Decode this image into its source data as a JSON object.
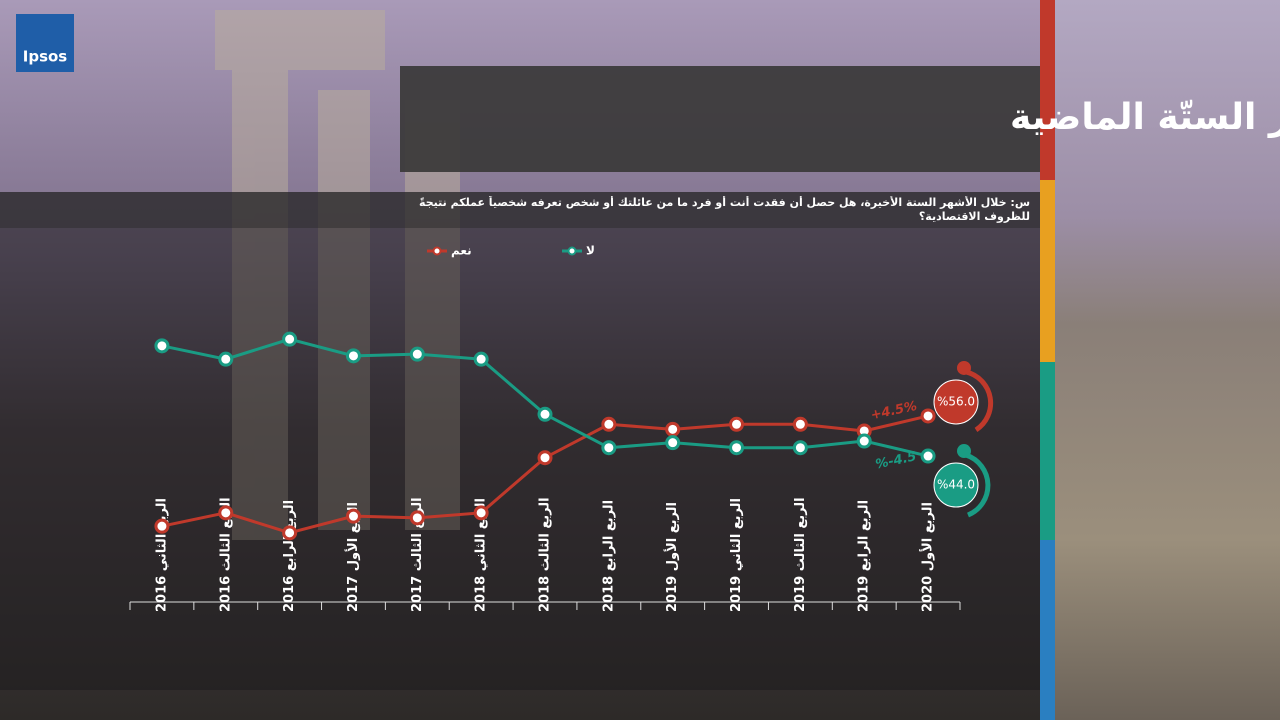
{
  "logo": "Ipsos",
  "chart_data": {
    "type": "line",
    "title": "فقدان العمل في الأشهر الستّة الماضية",
    "subtitle": "س: خلال الأشهر الستة الأخيرة، هل حصل أن فقدت أنت أو فرد ما من عائلتك أو شخص تعرفه شخصياً عملكم نتيجةً للظروف الاقتصادية؟",
    "categories": [
      "الربع الثاني 2016",
      "الربع الثالث 2016",
      "الربع الرابع 2016",
      "الربع الأول 2017",
      "الربع الثالث 2017",
      "الربع الثاني 2018",
      "الربع الثالث 2018",
      "الربع الرابع 2018",
      "الربع الأول 2019",
      "الربع الثاني 2019",
      "الربع الثالث 2019",
      "الربع الرابع 2019",
      "الربع الأول 2020"
    ],
    "series": [
      {
        "name": "نعم",
        "color": "#c0392b",
        "values": [
          23,
          27,
          21,
          26,
          25.5,
          27,
          43.5,
          53.5,
          52,
          53.5,
          53.5,
          51.5,
          56
        ],
        "value_labels": [
          null,
          null,
          null,
          null,
          null,
          null,
          null,
          null,
          null,
          null,
          null,
          null,
          "%56.0"
        ],
        "change_label": "+4.5%"
      },
      {
        "name": "لا",
        "color": "#1a9c84",
        "values": [
          77,
          73,
          79,
          74,
          74.5,
          73,
          56.5,
          46.5,
          48,
          46.5,
          46.5,
          48.5,
          44
        ],
        "value_labels": [
          null,
          null,
          null,
          null,
          null,
          null,
          null,
          null,
          null,
          null,
          null,
          null,
          "%44.0"
        ],
        "change_label": "%-4.5"
      }
    ],
    "ylim": [
      0,
      100
    ]
  }
}
